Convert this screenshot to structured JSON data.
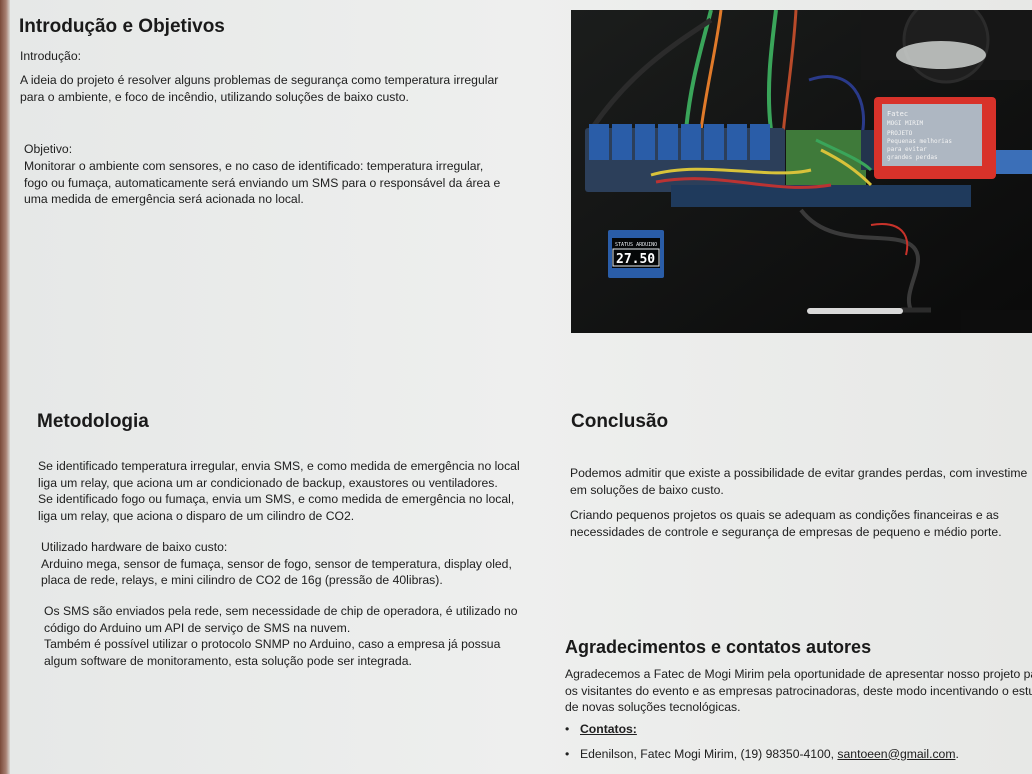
{
  "intro": {
    "title": "Introdução e Objetivos",
    "intro_label": "Introdução:",
    "intro_lines": [
      "A ideia do projeto é resolver alguns problemas de segurança como temperatura irregular",
      "para o ambiente, e foco de incêndio, utilizando soluções de baixo custo."
    ],
    "objective_label": "Objetivo:",
    "objective_lines": [
      "Monitorar o ambiente com sensores, e no caso de identificado: temperatura irregular,",
      "fogo ou fumaça, automaticamente será enviando um SMS para o responsável da área e",
      "uma medida de emergência será acionada no local."
    ]
  },
  "photo": {
    "oled_header": "STATUS ARDUINO",
    "oled_value": "27.50",
    "lcd_lines": [
      "Fatec",
      "MOGI MIRIM",
      "PROJETO",
      "Pequenas melhorias",
      "para evitar",
      "grandes perdas"
    ]
  },
  "methodology": {
    "title": "Metodologia",
    "para1": [
      "Se identificado temperatura irregular, envia SMS, e como medida de emergência no local",
      "liga um relay, que aciona um ar condicionado de backup, exaustores ou ventiladores.",
      "Se identificado fogo ou fumaça, envia um SMS, e como medida de emergência no local,",
      "liga um relay, que aciona o disparo de um cilindro de CO2."
    ],
    "para2": [
      "Utilizado hardware de baixo custo:",
      "Arduino mega, sensor de fumaça, sensor de fogo, sensor de temperatura, display oled,",
      "placa de rede, relays, e mini cilindro de CO2 de 16g (pressão de 40libras)."
    ],
    "para3": [
      "Os SMS são enviados pela rede, sem necessidade de chip de operadora, é utilizado no",
      "código do Arduino um API de serviço de SMS na nuvem.",
      "Também é possível utilizar o protocolo SNMP no Arduino, caso a empresa já possua",
      "algum software de monitoramento, esta solução pode ser integrada."
    ]
  },
  "conclusion": {
    "title": "Conclusão",
    "para1": [
      "Podemos admitir que existe a possibilidade de evitar grandes perdas, com investime",
      "em soluções de baixo custo."
    ],
    "para2": [
      "Criando pequenos projetos os quais se adequam as condições financeiras e as",
      "necessidades de controle e segurança de empresas de pequeno e médio porte."
    ]
  },
  "thanks": {
    "title": "Agradecimentos e contatos autores",
    "lines": [
      "Agradecemos a Fatec de Mogi Mirim pela oportunidade de apresentar nosso projeto par",
      "os visitantes do evento e as empresas patrocinadoras, deste modo incentivando o estud",
      "de novas soluções tecnológicas."
    ],
    "contacts_label": "Contatos:",
    "contact1_text": "Edenilson, Fatec Mogi Mirim, (19) 98350-4100, ",
    "contact1_email": "santoeen@gmail.com",
    "contact1_end": "."
  },
  "colors": {
    "relay_blue": "#2a5da8",
    "lcd_red": "#d8322a",
    "pcb_green": "#3f7a3a"
  }
}
